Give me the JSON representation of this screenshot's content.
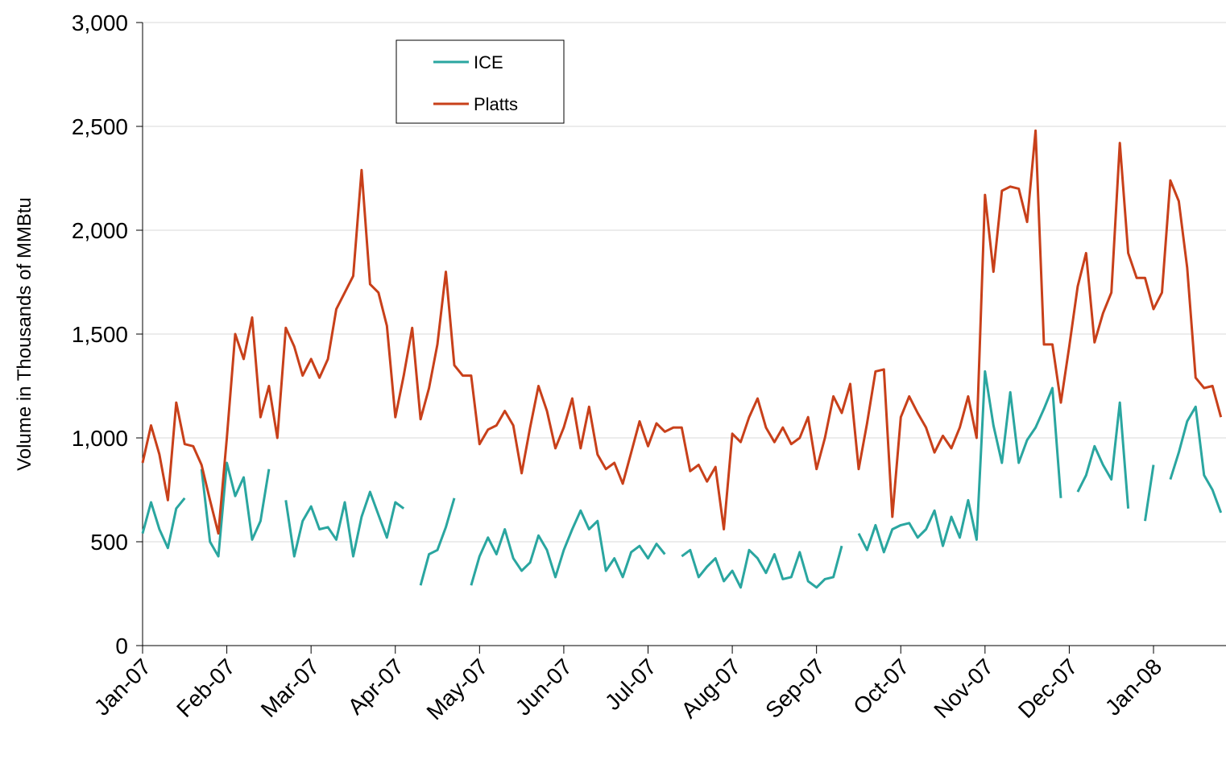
{
  "chart_data": {
    "type": "line",
    "y_label": "Volume in Thousands of MMBtu",
    "categories": [
      "Jan-07",
      null,
      null,
      null,
      null,
      null,
      null,
      null,
      null,
      null,
      "Feb-07",
      null,
      null,
      null,
      null,
      null,
      null,
      null,
      null,
      null,
      "Mar-07",
      null,
      null,
      null,
      null,
      null,
      null,
      null,
      null,
      null,
      "Apr-07",
      null,
      null,
      null,
      null,
      null,
      null,
      null,
      null,
      null,
      "May-07",
      null,
      null,
      null,
      null,
      null,
      null,
      null,
      null,
      null,
      "Jun-07",
      null,
      null,
      null,
      null,
      null,
      null,
      null,
      null,
      null,
      "Jul-07",
      null,
      null,
      null,
      null,
      null,
      null,
      null,
      null,
      null,
      "Aug-07",
      null,
      null,
      null,
      null,
      null,
      null,
      null,
      null,
      null,
      "Sep-07",
      null,
      null,
      null,
      null,
      null,
      null,
      null,
      null,
      null,
      "Oct-07",
      null,
      null,
      null,
      null,
      null,
      null,
      null,
      null,
      null,
      "Nov-07",
      null,
      null,
      null,
      null,
      null,
      null,
      null,
      null,
      null,
      "Dec-07",
      null,
      null,
      null,
      null,
      null,
      null,
      null,
      null,
      null,
      "Jan-08",
      null,
      null,
      null,
      null,
      null,
      null,
      null,
      null
    ],
    "series": [
      {
        "name": "ICE",
        "color": "#2aa6a0",
        "values": [
          540,
          690,
          560,
          470,
          660,
          710,
          null,
          850,
          500,
          430,
          880,
          720,
          810,
          510,
          600,
          850,
          null,
          700,
          430,
          600,
          670,
          560,
          570,
          510,
          690,
          430,
          620,
          740,
          630,
          520,
          690,
          660,
          null,
          290,
          440,
          460,
          570,
          710,
          null,
          290,
          430,
          520,
          440,
          560,
          420,
          360,
          400,
          530,
          460,
          330,
          460,
          560,
          650,
          560,
          600,
          360,
          420,
          330,
          450,
          480,
          420,
          490,
          440,
          null,
          430,
          460,
          330,
          380,
          420,
          310,
          360,
          280,
          460,
          420,
          350,
          440,
          320,
          330,
          450,
          310,
          280,
          320,
          330,
          480,
          null,
          540,
          460,
          580,
          450,
          560,
          580,
          590,
          520,
          560,
          650,
          480,
          620,
          520,
          700,
          510,
          1320,
          1060,
          880,
          1220,
          880,
          990,
          1050,
          1140,
          1240,
          710,
          null,
          740,
          820,
          960,
          870,
          800,
          1170,
          660,
          null,
          600,
          870,
          null,
          800,
          930,
          1080,
          1150,
          820,
          750,
          640
        ]
      },
      {
        "name": "Platts",
        "color": "#c8401a",
        "values": [
          880,
          1060,
          920,
          700,
          1170,
          970,
          960,
          870,
          700,
          540,
          1000,
          1500,
          1380,
          1580,
          1100,
          1250,
          1000,
          1530,
          1440,
          1300,
          1380,
          1290,
          1380,
          1620,
          1700,
          1780,
          2290,
          1740,
          1700,
          1540,
          1100,
          1300,
          1530,
          1090,
          1240,
          1450,
          1800,
          1350,
          1300,
          1300,
          970,
          1040,
          1060,
          1130,
          1060,
          830,
          1050,
          1250,
          1130,
          950,
          1050,
          1190,
          950,
          1150,
          920,
          850,
          880,
          780,
          930,
          1080,
          960,
          1070,
          1030,
          1050,
          1050,
          840,
          870,
          790,
          860,
          560,
          1020,
          980,
          1100,
          1190,
          1050,
          980,
          1050,
          970,
          1000,
          1100,
          850,
          1000,
          1200,
          1120,
          1260,
          850,
          1070,
          1320,
          1330,
          620,
          1100,
          1200,
          1120,
          1050,
          930,
          1010,
          950,
          1050,
          1200,
          1000,
          2170,
          1800,
          2190,
          2210,
          2200,
          2040,
          2480,
          1450,
          1450,
          1170,
          1440,
          1730,
          1890,
          1460,
          1600,
          1700,
          2420,
          1890,
          1770,
          1770,
          1620,
          1700,
          2240,
          2140,
          1820,
          1290,
          1240,
          1250,
          1100
        ]
      }
    ],
    "ylim": [
      0,
      3000
    ],
    "yticks": [
      0,
      500,
      {
        "value": 1000,
        "label": "1,000"
      },
      {
        "value": 1500,
        "label": "1,500"
      },
      {
        "value": 2000,
        "label": "2,000"
      },
      {
        "value": 2500,
        "label": "2,500"
      },
      {
        "value": 3000,
        "label": "3,000"
      }
    ],
    "grid": true
  }
}
